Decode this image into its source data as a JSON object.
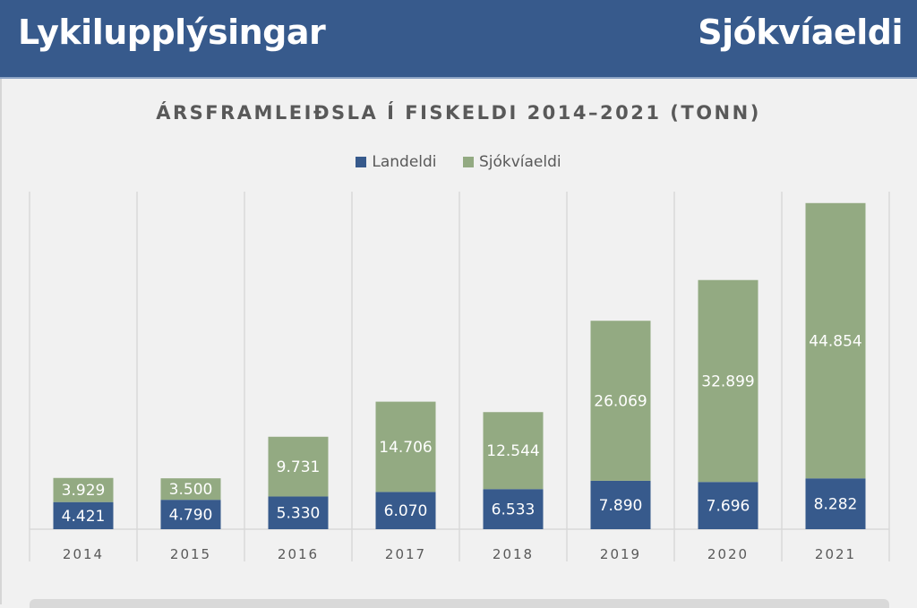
{
  "header": {
    "title_left": "Lykilupplýsingar",
    "title_right": "Sjókvíaeldi",
    "bg_color": "#375a8c"
  },
  "chart_data": {
    "type": "bar",
    "stacked": true,
    "title": "ÁRSFRAMLEIÐSLA Í FISKELDI 2014–2021 (TONN)",
    "xlabel": "",
    "ylabel": "",
    "ylim": [
      0,
      55000
    ],
    "grid": "vertical category dividers",
    "legend_position": "top",
    "categories": [
      "2014",
      "2015",
      "2016",
      "2017",
      "2018",
      "2019",
      "2020",
      "2021"
    ],
    "series": [
      {
        "name": "Landeldi",
        "color": "#375a8c",
        "values": [
          4421,
          4790,
          5330,
          6070,
          6533,
          7890,
          7696,
          8282
        ],
        "labels": [
          "4.421",
          "4.790",
          "5.330",
          "6.070",
          "6.533",
          "7.890",
          "7.696",
          "8.282"
        ]
      },
      {
        "name": "Sjókvíaeldi",
        "color": "#93aa82",
        "values": [
          3929,
          3500,
          9731,
          14706,
          12544,
          26069,
          32899,
          44854
        ],
        "labels": [
          "3.929",
          "3.500",
          "9.731",
          "14.706",
          "12.544",
          "26.069",
          "32.899",
          "44.854"
        ]
      }
    ]
  }
}
